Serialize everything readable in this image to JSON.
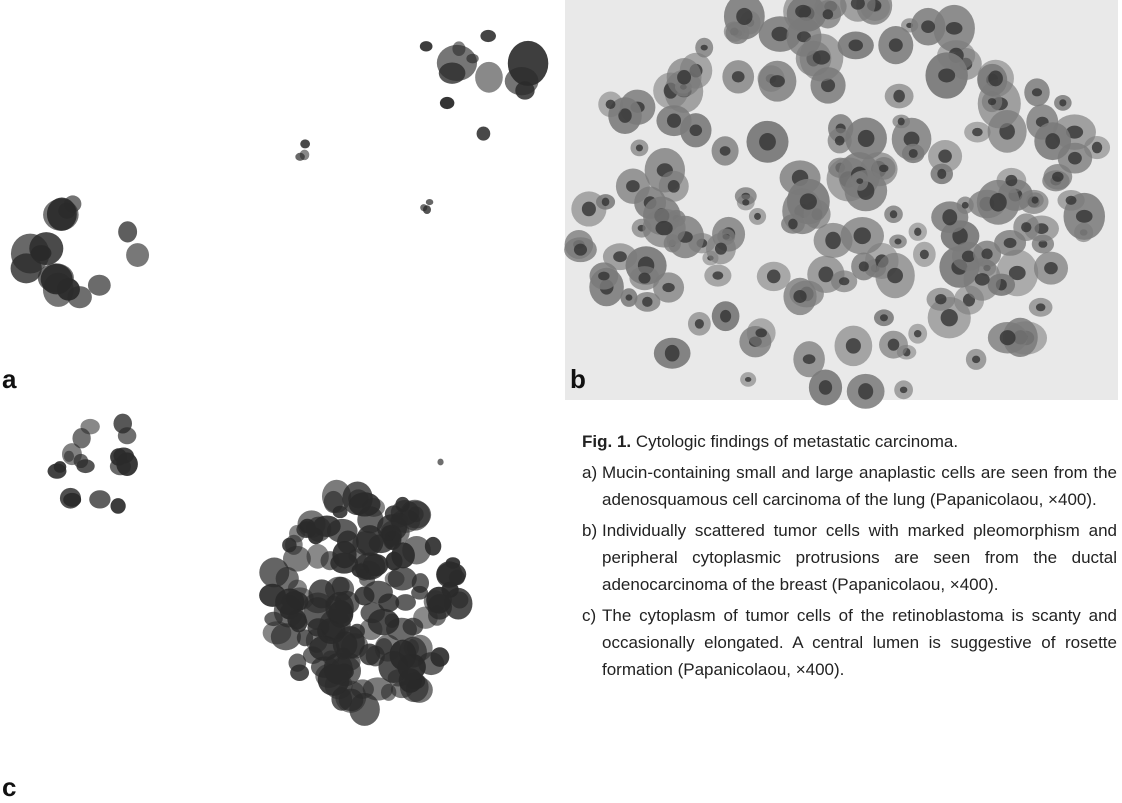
{
  "figure": {
    "panels": [
      {
        "label": "a"
      },
      {
        "label": "b"
      },
      {
        "label": "c"
      }
    ],
    "caption": {
      "label": "Fig. 1.",
      "title": "Cytologic findings of metastatic carcinoma.",
      "items": [
        {
          "marker": "a)",
          "text": "Mucin-containing small and large anaplastic cells are seen from the adenosquamous cell carcinoma of the lung (Papanicolaou, ×400)."
        },
        {
          "marker": "b)",
          "text": "Individually scattered tumor cells with marked pleomorphism and peripheral cytoplasmic protrusions are seen from the ductal adenocarcinoma of the breast (Papanicolaou, ×400)."
        },
        {
          "marker": "c)",
          "text": "The cytoplasm of tumor cells of the retinoblastoma is scanty and occasionally elongated. A central lumen is suggestive of rosette formation (Papanicolaou, ×400)."
        }
      ]
    }
  }
}
